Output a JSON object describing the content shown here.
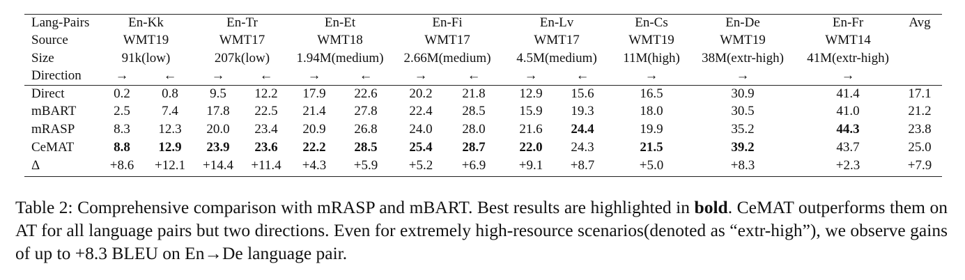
{
  "table": {
    "header_labels": [
      "Lang-Pairs",
      "Source",
      "Size",
      "Direction"
    ],
    "groups": [
      {
        "pair": "En-Kk",
        "source": "WMT19",
        "size": "91k(low)",
        "directions": [
          "→",
          "←"
        ]
      },
      {
        "pair": "En-Tr",
        "source": "WMT17",
        "size": "207k(low)",
        "directions": [
          "→",
          "←"
        ]
      },
      {
        "pair": "En-Et",
        "source": "WMT18",
        "size": "1.94M(medium)",
        "directions": [
          "→",
          "←"
        ]
      },
      {
        "pair": "En-Fi",
        "source": "WMT17",
        "size": "2.66M(medium)",
        "directions": [
          "→",
          "←"
        ]
      },
      {
        "pair": "En-Lv",
        "source": "WMT17",
        "size": "4.5M(medium)",
        "directions": [
          "→",
          "←"
        ]
      },
      {
        "pair": "En-Cs",
        "source": "WMT19",
        "size": "11M(high)",
        "directions": [
          "→"
        ]
      },
      {
        "pair": "En-De",
        "source": "WMT19",
        "size": "38M(extr-high)",
        "directions": [
          "→"
        ]
      },
      {
        "pair": "En-Fr",
        "source": "WMT14",
        "size": "41M(extr-high)",
        "directions": [
          "→"
        ]
      }
    ],
    "avg": "Avg",
    "rows": [
      {
        "label": "Direct",
        "cells": [
          "0.2",
          "0.8",
          "9.5",
          "12.2",
          "17.9",
          "22.6",
          "20.2",
          "21.8",
          "12.9",
          "15.6",
          "16.5",
          "30.9",
          "41.4",
          "17.1"
        ],
        "bold": []
      },
      {
        "label": "mBART",
        "cells": [
          "2.5",
          "7.4",
          "17.8",
          "22.5",
          "21.4",
          "27.8",
          "22.4",
          "28.5",
          "15.9",
          "19.3",
          "18.0",
          "30.5",
          "41.0",
          "21.2"
        ],
        "bold": []
      },
      {
        "label": "mRASP",
        "cells": [
          "8.3",
          "12.3",
          "20.0",
          "23.4",
          "20.9",
          "26.8",
          "24.0",
          "28.0",
          "21.6",
          "24.4",
          "19.9",
          "35.2",
          "44.3",
          "23.8"
        ],
        "bold": [
          9,
          12
        ]
      },
      {
        "label": "CeMAT",
        "cells": [
          "8.8",
          "12.9",
          "23.9",
          "23.6",
          "22.2",
          "28.5",
          "25.4",
          "28.7",
          "22.0",
          "24.3",
          "21.5",
          "39.2",
          "43.7",
          "25.0"
        ],
        "bold": [
          0,
          1,
          2,
          3,
          4,
          5,
          6,
          7,
          8,
          10,
          11
        ]
      },
      {
        "label": "Δ",
        "cells": [
          "+8.6",
          "+12.1",
          "+14.4",
          "+11.4",
          "+4.3",
          "+5.9",
          "+5.2",
          "+6.9",
          "+9.1",
          "+8.7",
          "+5.0",
          "+8.3",
          "+2.3",
          "+7.9"
        ],
        "bold": []
      }
    ]
  },
  "caption": {
    "label": "Table 2:",
    "text_before_bold": " Comprehensive comparison with mRASP and mBART. Best results are highlighted in ",
    "bold_word": "bold",
    "text_after_bold": ". CeMAT outperforms them on AT for all language pairs but two directions. Even for extremely high-resource scenarios(denoted as “extr-high”), we observe gains of up to +8.3 BLEU on En→De language pair."
  }
}
